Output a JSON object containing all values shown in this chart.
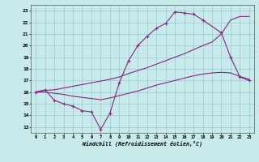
{
  "xlabel": "Windchill (Refroidissement éolien,°C)",
  "xlim": [
    -0.5,
    23.5
  ],
  "ylim": [
    12.5,
    23.5
  ],
  "xticks": [
    0,
    1,
    2,
    3,
    4,
    5,
    6,
    7,
    8,
    9,
    10,
    11,
    12,
    13,
    14,
    15,
    16,
    17,
    18,
    19,
    20,
    21,
    22,
    23
  ],
  "yticks": [
    13,
    14,
    15,
    16,
    17,
    18,
    19,
    20,
    21,
    22,
    23
  ],
  "line_color": "#882288",
  "bg_color": "#c8eaea",
  "grid_color": "#99cccc",
  "line1_x": [
    0,
    1,
    2,
    3,
    4,
    5,
    6,
    7,
    8,
    9,
    10,
    11,
    12,
    13,
    14,
    15,
    16,
    17,
    18,
    20,
    21,
    22,
    23
  ],
  "line1_y": [
    16.0,
    16.2,
    15.3,
    15.0,
    14.8,
    14.4,
    14.3,
    12.8,
    14.2,
    16.8,
    18.7,
    20.0,
    20.8,
    21.5,
    21.9,
    22.9,
    22.8,
    22.7,
    22.2,
    21.1,
    19.0,
    17.3,
    17.0
  ],
  "line2_x": [
    0,
    1,
    2,
    3,
    4,
    5,
    6,
    7,
    8,
    9,
    10,
    11,
    12,
    13,
    14,
    15,
    16,
    17,
    18,
    19,
    20,
    21,
    22,
    23
  ],
  "line2_y": [
    16.0,
    16.15,
    16.2,
    16.35,
    16.5,
    16.65,
    16.8,
    16.95,
    17.1,
    17.3,
    17.6,
    17.85,
    18.1,
    18.4,
    18.7,
    19.0,
    19.3,
    19.65,
    20.0,
    20.3,
    21.0,
    22.2,
    22.5,
    22.5
  ],
  "line3_x": [
    0,
    1,
    2,
    3,
    4,
    5,
    6,
    7,
    8,
    9,
    10,
    11,
    12,
    13,
    14,
    15,
    16,
    17,
    18,
    19,
    20,
    21,
    22,
    23
  ],
  "line3_y": [
    16.0,
    16.0,
    15.9,
    15.8,
    15.65,
    15.55,
    15.45,
    15.35,
    15.5,
    15.7,
    15.9,
    16.1,
    16.35,
    16.6,
    16.8,
    17.0,
    17.2,
    17.4,
    17.55,
    17.65,
    17.7,
    17.65,
    17.35,
    17.1
  ]
}
